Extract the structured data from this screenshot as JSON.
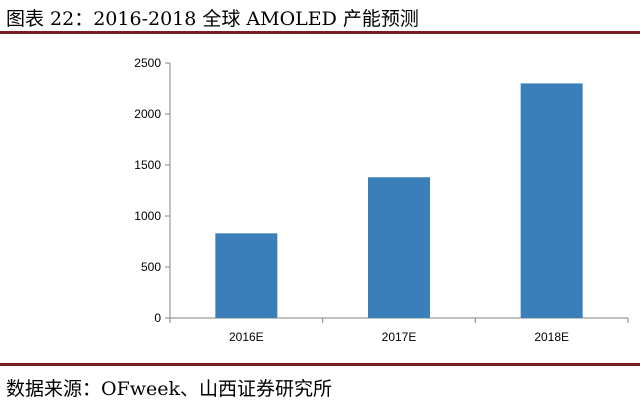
{
  "header": {
    "title": "图表  22：2016-2018 全球 AMOLED 产能预测"
  },
  "footer": {
    "source": "数据来源：OFweek、山西证券研究所"
  },
  "chart_data": {
    "type": "bar",
    "title": "",
    "xlabel": "",
    "ylabel": "",
    "categories": [
      "2016E",
      "2017E",
      "2018E"
    ],
    "values": [
      830,
      1380,
      2300
    ],
    "ylim": [
      0,
      2500
    ],
    "yticks": [
      0,
      500,
      1000,
      1500,
      2000,
      2500
    ],
    "bar_color": "#3a7fba",
    "grid": false,
    "legend": "none"
  }
}
